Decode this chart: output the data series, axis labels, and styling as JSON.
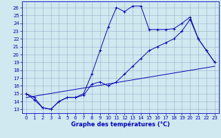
{
  "xlabel": "Graphe des températures (°C)",
  "xlim": [
    -0.5,
    23.5
  ],
  "ylim": [
    12.5,
    26.8
  ],
  "yticks": [
    13,
    14,
    15,
    16,
    17,
    18,
    19,
    20,
    21,
    22,
    23,
    24,
    25,
    26
  ],
  "xticks": [
    0,
    1,
    2,
    3,
    4,
    5,
    6,
    7,
    8,
    9,
    10,
    11,
    12,
    13,
    14,
    15,
    16,
    17,
    18,
    19,
    20,
    21,
    22,
    23
  ],
  "background_color": "#d0e8f0",
  "line_color": "#0000bb",
  "grid_color": "#9ab0c8",
  "series1_x": [
    0,
    1,
    2,
    3,
    4,
    5,
    6,
    7,
    8,
    9,
    10,
    11,
    12,
    13,
    14,
    15,
    16,
    17,
    18,
    19,
    20,
    21,
    22,
    23
  ],
  "series1_y": [
    15.0,
    14.5,
    13.2,
    13.0,
    14.0,
    14.5,
    14.5,
    15.0,
    17.5,
    20.5,
    23.5,
    26.0,
    25.5,
    26.2,
    26.2,
    23.2,
    23.2,
    23.2,
    23.3,
    24.0,
    24.8,
    22.0,
    20.5,
    19.0
  ],
  "series2_x": [
    0,
    1,
    2,
    3,
    4,
    5,
    6,
    7,
    8,
    9,
    10,
    11,
    12,
    13,
    14,
    15,
    16,
    17,
    18,
    19,
    20,
    21,
    22,
    23
  ],
  "series2_y": [
    15.0,
    14.2,
    13.2,
    13.0,
    14.0,
    14.5,
    14.5,
    14.8,
    16.2,
    16.5,
    16.0,
    16.5,
    17.5,
    18.5,
    19.5,
    20.5,
    21.0,
    21.5,
    22.0,
    23.0,
    24.5,
    22.0,
    20.5,
    19.0
  ],
  "series3_x": [
    0,
    23
  ],
  "series3_y": [
    14.5,
    18.5
  ],
  "tick_fontsize": 5,
  "xlabel_fontsize": 6,
  "lw": 0.7,
  "ms": 2.5,
  "mew": 0.7
}
